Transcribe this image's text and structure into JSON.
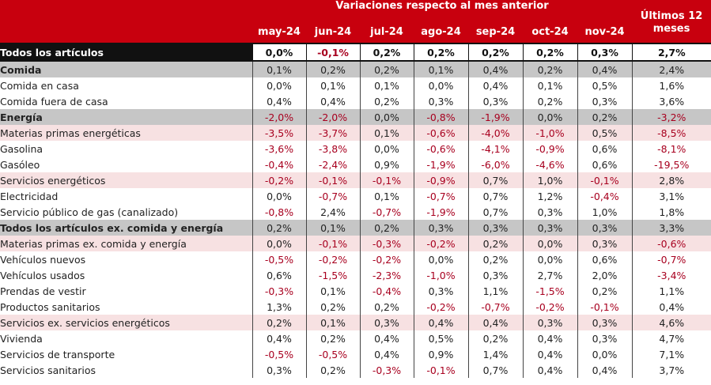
{
  "header": {
    "group_title": "Variaciones respecto al mes anterior",
    "last12_line1": "Últimos 12",
    "last12_line2": "meses",
    "months": [
      "may-24",
      "jun-24",
      "jul-24",
      "ago-24",
      "sep-24",
      "oct-24",
      "nov-24"
    ]
  },
  "rows": [
    {
      "label": "Todos los artículos",
      "level": 0,
      "values": [
        "0,0%",
        "-0,1%",
        "0,2%",
        "0,2%",
        "0,2%",
        "0,2%",
        "0,3%"
      ],
      "last12": "2,7%"
    },
    {
      "label": "Comida",
      "level": 1,
      "values": [
        "0,1%",
        "0,2%",
        "0,2%",
        "0,1%",
        "0,4%",
        "0,2%",
        "0,4%"
      ],
      "last12": "2,4%"
    },
    {
      "label": "Comida en casa",
      "level": 3,
      "values": [
        "0,0%",
        "0,1%",
        "0,1%",
        "0,0%",
        "0,4%",
        "0,1%",
        "0,5%"
      ],
      "last12": "1,6%"
    },
    {
      "label": "Comida fuera de casa",
      "level": 3,
      "values": [
        "0,4%",
        "0,4%",
        "0,2%",
        "0,3%",
        "0,3%",
        "0,2%",
        "0,3%"
      ],
      "last12": "3,6%"
    },
    {
      "label": "Energía",
      "level": 1,
      "values": [
        "-2,0%",
        "-2,0%",
        "0,0%",
        "-0,8%",
        "-1,9%",
        "0,0%",
        "0,2%"
      ],
      "last12": "-3,2%"
    },
    {
      "label": "Materias primas energéticas",
      "level": 2,
      "values": [
        "-3,5%",
        "-3,7%",
        "0,1%",
        "-0,6%",
        "-4,0%",
        "-1,0%",
        "0,5%"
      ],
      "last12": "-8,5%"
    },
    {
      "label": "Gasolina",
      "level": 3,
      "values": [
        "-3,6%",
        "-3,8%",
        "0,0%",
        "-0,6%",
        "-4,1%",
        "-0,9%",
        "0,6%"
      ],
      "last12": "-8,1%"
    },
    {
      "label": "Gasóleo",
      "level": 3,
      "values": [
        "-0,4%",
        "-2,4%",
        "0,9%",
        "-1,9%",
        "-6,0%",
        "-4,6%",
        "0,6%"
      ],
      "last12": "-19,5%"
    },
    {
      "label": "Servicios energéticos",
      "level": 2,
      "values": [
        "-0,2%",
        "-0,1%",
        "-0,1%",
        "-0,9%",
        "0,7%",
        "1,0%",
        "-0,1%"
      ],
      "last12": "2,8%"
    },
    {
      "label": "Electricidad",
      "level": 3,
      "values": [
        "0,0%",
        "-0,7%",
        "0,1%",
        "-0,7%",
        "0,7%",
        "1,2%",
        "-0,4%"
      ],
      "last12": "3,1%"
    },
    {
      "label": "Servicio público de gas (canalizado)",
      "level": 3,
      "values": [
        "-0,8%",
        "2,4%",
        "-0,7%",
        "-1,9%",
        "0,7%",
        "0,3%",
        "1,0%"
      ],
      "last12": "1,8%"
    },
    {
      "label": "Todos los artículos ex. comida y energía",
      "level": 1,
      "values": [
        "0,2%",
        "0,1%",
        "0,2%",
        "0,3%",
        "0,3%",
        "0,3%",
        "0,3%"
      ],
      "last12": "3,3%"
    },
    {
      "label": "Materias primas ex. comida y energía",
      "level": 2,
      "values": [
        "0,0%",
        "-0,1%",
        "-0,3%",
        "-0,2%",
        "0,2%",
        "0,0%",
        "0,3%"
      ],
      "last12": "-0,6%"
    },
    {
      "label": "Vehículos nuevos",
      "level": 3,
      "values": [
        "-0,5%",
        "-0,2%",
        "-0,2%",
        "0,0%",
        "0,2%",
        "0,0%",
        "0,6%"
      ],
      "last12": "-0,7%"
    },
    {
      "label": "Vehículos usados",
      "level": 3,
      "values": [
        "0,6%",
        "-1,5%",
        "-2,3%",
        "-1,0%",
        "0,3%",
        "2,7%",
        "2,0%"
      ],
      "last12": "-3,4%"
    },
    {
      "label": "Prendas de vestir",
      "level": 3,
      "values": [
        "-0,3%",
        "0,1%",
        "-0,4%",
        "0,3%",
        "1,1%",
        "-1,5%",
        "0,2%"
      ],
      "last12": "1,1%"
    },
    {
      "label": "Productos sanitarios",
      "level": 3,
      "values": [
        "1,3%",
        "0,2%",
        "0,2%",
        "-0,2%",
        "-0,7%",
        "-0,2%",
        "-0,1%"
      ],
      "last12": "0,4%"
    },
    {
      "label": "Servicios ex. servicios energéticos",
      "level": 2,
      "values": [
        "0,2%",
        "0,1%",
        "0,3%",
        "0,4%",
        "0,4%",
        "0,3%",
        "0,3%"
      ],
      "last12": "4,6%"
    },
    {
      "label": "Vivienda",
      "level": 3,
      "values": [
        "0,4%",
        "0,2%",
        "0,4%",
        "0,5%",
        "0,2%",
        "0,4%",
        "0,3%"
      ],
      "last12": "4,7%"
    },
    {
      "label": "Servicios de transporte",
      "level": 3,
      "values": [
        "-0,5%",
        "-0,5%",
        "0,4%",
        "0,9%",
        "1,4%",
        "0,4%",
        "0,0%"
      ],
      "last12": "7,1%"
    },
    {
      "label": "Servicios sanitarios",
      "level": 3,
      "values": [
        "0,3%",
        "0,2%",
        "-0,3%",
        "-0,1%",
        "0,7%",
        "0,4%",
        "0,4%"
      ],
      "last12": "3,7%"
    }
  ]
}
